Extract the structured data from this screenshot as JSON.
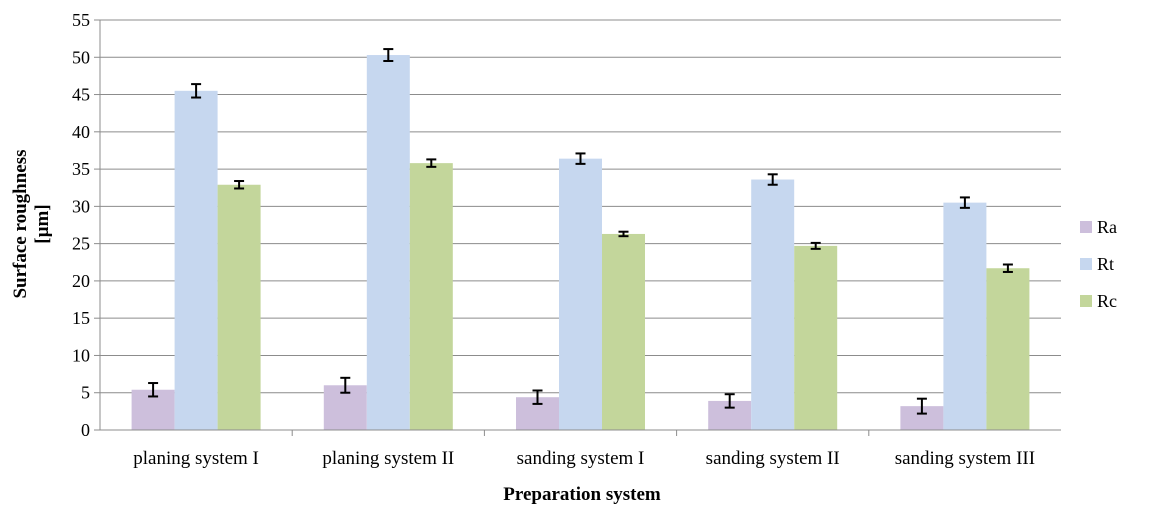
{
  "chart_data": {
    "type": "bar",
    "xlabel": "Preparation system",
    "ylabel_lines": [
      "Surface roughness",
      "[µm]"
    ],
    "ylim": [
      0,
      55
    ],
    "ytick_step": 5,
    "grid": "horizontal",
    "legend_position": "right",
    "categories": [
      "planing system I",
      "planing system II",
      "sanding system I",
      "sanding system II",
      "sanding system III"
    ],
    "series": [
      {
        "name": "Ra",
        "color": "#CDBFDC",
        "values": [
          5.4,
          6.0,
          4.4,
          3.9,
          3.2
        ],
        "errors": [
          0.9,
          1.0,
          0.9,
          0.9,
          1.0
        ]
      },
      {
        "name": "Rt",
        "color": "#C6D7EF",
        "values": [
          45.5,
          50.3,
          36.4,
          33.6,
          30.5
        ],
        "errors": [
          0.9,
          0.8,
          0.7,
          0.7,
          0.7
        ]
      },
      {
        "name": "Rc",
        "color": "#C3D69B",
        "values": [
          32.9,
          35.8,
          26.3,
          24.7,
          21.7
        ],
        "errors": [
          0.5,
          0.5,
          0.3,
          0.4,
          0.5
        ]
      }
    ]
  }
}
